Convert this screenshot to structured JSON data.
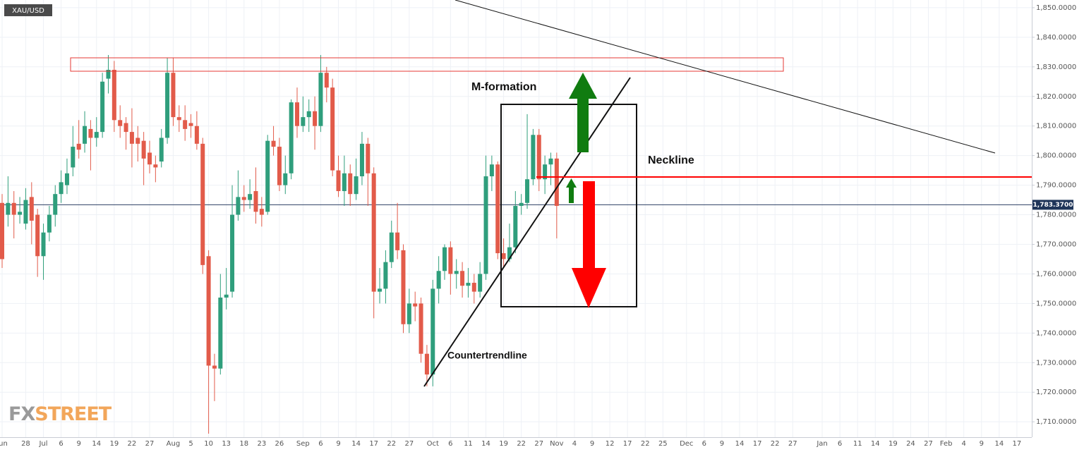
{
  "chart_data": {
    "type": "candlestick",
    "title": "XAU/USD",
    "watermark": {
      "brand": "FX",
      "suffix": "STREET"
    },
    "annotations": [
      "M-formation",
      "Neckline",
      "Countertrendline"
    ],
    "up_color": "#2f9e7c",
    "down_color": "#e25b4a",
    "grid": true,
    "price_line": {
      "value": 1783.37,
      "label": "1,783.3700"
    },
    "ylim": [
      1704.8,
      1852.6
    ],
    "yticks": [
      {
        "value": 1710,
        "label": "1,710.0000"
      },
      {
        "value": 1720,
        "label": "1,720.0000"
      },
      {
        "value": 1730,
        "label": "1,730.0000"
      },
      {
        "value": 1740,
        "label": "1,740.0000"
      },
      {
        "value": 1750,
        "label": "1,750.0000"
      },
      {
        "value": 1760,
        "label": "1,760.0000"
      },
      {
        "value": 1770,
        "label": "1,770.0000"
      },
      {
        "value": 1780,
        "label": "1,780.0000"
      },
      {
        "value": 1790,
        "label": "1,790.0000"
      },
      {
        "value": 1800,
        "label": "1,800.0000"
      },
      {
        "value": 1810,
        "label": "1,810.0000"
      },
      {
        "value": 1820,
        "label": "1,820.0000"
      },
      {
        "value": 1830,
        "label": "1,830.0000"
      },
      {
        "value": 1840,
        "label": "1,840.0000"
      },
      {
        "value": 1850,
        "label": "1,850.0000"
      }
    ],
    "categories": [
      "Jun",
      null,
      null,
      null,
      "28",
      null,
      null,
      "Jul",
      null,
      null,
      "6",
      null,
      null,
      "9",
      null,
      null,
      "14",
      null,
      null,
      "19",
      null,
      null,
      "22",
      null,
      null,
      "27",
      null,
      null,
      null,
      "Aug",
      null,
      null,
      "5",
      null,
      null,
      "10",
      null,
      null,
      "13",
      null,
      null,
      "18",
      null,
      null,
      "23",
      null,
      null,
      "26",
      null,
      null,
      null,
      "Sep",
      null,
      null,
      "6",
      null,
      null,
      "9",
      null,
      null,
      "14",
      null,
      null,
      "17",
      null,
      null,
      "22",
      null,
      null,
      "27",
      null,
      null,
      null,
      "Oct",
      null,
      null,
      "6",
      null,
      null,
      "11",
      null,
      null,
      "14",
      null,
      null,
      "19",
      null,
      null,
      "22",
      null,
      null,
      "27",
      null,
      null,
      "Nov",
      null,
      null,
      "4",
      null,
      null,
      "9",
      null,
      null,
      "12",
      null,
      null,
      "17",
      null,
      null,
      "22",
      null,
      null,
      "25",
      null,
      null,
      null,
      "Dec",
      null,
      null,
      "6",
      null,
      null,
      "9",
      null,
      null,
      "14",
      null,
      null,
      "17",
      null,
      null,
      "22",
      null,
      null,
      "27",
      null,
      null,
      null,
      null,
      "Jan",
      null,
      null,
      "6",
      null,
      null,
      "11",
      null,
      null,
      "14",
      null,
      null,
      "19",
      null,
      null,
      "24",
      null,
      null,
      "27",
      null,
      null,
      "Feb",
      null,
      null,
      "4",
      null,
      null,
      "9",
      null,
      null,
      "14",
      null,
      null,
      "17",
      null
    ],
    "open": [
      1784,
      1780,
      1784,
      1780,
      1777,
      1786,
      1780,
      1766,
      1774,
      1780,
      1787,
      1790,
      1796,
      1804,
      1804,
      1809,
      1806,
      1808,
      1826,
      1829,
      1812,
      1811,
      1808,
      1806,
      1805,
      1801,
      1797,
      1798,
      1806,
      1828,
      1813,
      1812,
      1811,
      1810,
      1804,
      1766,
      1729,
      1728,
      1752,
      1754,
      1780,
      1786,
      1785,
      1788,
      1782,
      1781,
      1805,
      1803,
      1790,
      1794,
      1818,
      1810,
      1813,
      1815,
      1810,
      1828,
      1823,
      1795,
      1788,
      1794,
      1787,
      1793,
      1804,
      1794,
      1754,
      1755,
      1764,
      1774,
      1768,
      1743,
      1750,
      1750,
      1733,
      1726,
      1755,
      1761,
      1769,
      1760,
      1761,
      1756,
      1757,
      1754,
      1760,
      1793,
      1797,
      1767,
      1765,
      1769,
      1783,
      1784,
      1792,
      1807,
      1792,
      1797,
      1799,
      null,
      null,
      null,
      null,
      null,
      null,
      null,
      null,
      null,
      null,
      null,
      null,
      null,
      null,
      null,
      null,
      null,
      null,
      null,
      null,
      null,
      null,
      null,
      null,
      null,
      null,
      null,
      null,
      null,
      null,
      null,
      null,
      null,
      null,
      null,
      null,
      null,
      null,
      null,
      null,
      null,
      null,
      null,
      null,
      null,
      null,
      null,
      null,
      null,
      null,
      null,
      null,
      null,
      null,
      null,
      null,
      null,
      null,
      null,
      null,
      null,
      null,
      null,
      null,
      null,
      null,
      null,
      null,
      null,
      null,
      null,
      null,
      null,
      null,
      null,
      null,
      null,
      null,
      null
    ],
    "high": [
      1787,
      1793,
      1788,
      1786,
      1789,
      1791,
      1782,
      1777,
      1783,
      1790,
      1795,
      1799,
      1810,
      1812,
      1815,
      1812,
      1813,
      1828,
      1834,
      1832,
      1817,
      1813,
      1816,
      1810,
      1808,
      1805,
      1800,
      1809,
      1833,
      1833,
      1817,
      1817,
      1814,
      1815,
      1806,
      1768,
      1733,
      1760,
      1762,
      1790,
      1795,
      1790,
      1792,
      1796,
      1786,
      1807,
      1810,
      1806,
      1800,
      1819,
      1823,
      1820,
      1819,
      1820,
      1834,
      1830,
      1826,
      1800,
      1800,
      1797,
      1799,
      1808,
      1806,
      1796,
      1762,
      1768,
      1778,
      1784,
      1770,
      1755,
      1754,
      1752,
      1736,
      1758,
      1766,
      1770,
      1771,
      1765,
      1764,
      1762,
      1760,
      1764,
      1800,
      1800,
      1798,
      1772,
      1777,
      1788,
      1787,
      1814,
      1809,
      1809,
      1800,
      1801,
      1801,
      null,
      null,
      null,
      null,
      null,
      null,
      null,
      null,
      null,
      null,
      null,
      null,
      null,
      null,
      null,
      null,
      null,
      null,
      null,
      null,
      null,
      null,
      null,
      null,
      null,
      null,
      null,
      null,
      null,
      null,
      null,
      null,
      null,
      null,
      null,
      null,
      null,
      null,
      null,
      null,
      null,
      null,
      null,
      null,
      null,
      null,
      null,
      null,
      null,
      null,
      null,
      null,
      null,
      null,
      null,
      null,
      null,
      null,
      null,
      null,
      null,
      null,
      null,
      null,
      null,
      null,
      null,
      null,
      null,
      null,
      null,
      null,
      null,
      null,
      null,
      null,
      null,
      null,
      null
    ],
    "low": [
      1762,
      1776,
      1772,
      1777,
      1775,
      1770,
      1759,
      1758,
      1771,
      1776,
      1784,
      1787,
      1793,
      1799,
      1801,
      1795,
      1803,
      1806,
      1821,
      1808,
      1806,
      1802,
      1796,
      1798,
      1790,
      1794,
      1791,
      1796,
      1804,
      1810,
      1808,
      1805,
      1806,
      1802,
      1760,
      1706,
      1717,
      1726,
      1748,
      1752,
      1778,
      1781,
      1782,
      1777,
      1776,
      1780,
      1800,
      1788,
      1787,
      1792,
      1806,
      1808,
      1808,
      1802,
      1808,
      1818,
      1793,
      1786,
      1783,
      1783,
      1785,
      1790,
      1783,
      1745,
      1750,
      1750,
      1762,
      1765,
      1740,
      1740,
      1744,
      1730,
      1722,
      1722,
      1750,
      1758,
      1753,
      1755,
      1752,
      1752,
      1750,
      1752,
      1758,
      1788,
      1765,
      1762,
      1764,
      1767,
      1780,
      1782,
      1790,
      1788,
      1787,
      1790,
      1772,
      null,
      null,
      null,
      null,
      null,
      null,
      null,
      null,
      null,
      null,
      null,
      null,
      null,
      null,
      null,
      null,
      null,
      null,
      null,
      null,
      null,
      null,
      null,
      null,
      null,
      null,
      null,
      null,
      null,
      null,
      null,
      null,
      null,
      null,
      null,
      null,
      null,
      null,
      null,
      null,
      null,
      null,
      null,
      null,
      null,
      null,
      null,
      null,
      null,
      null,
      null,
      null,
      null,
      null,
      null,
      null,
      null,
      null,
      null,
      null,
      null,
      null,
      null,
      null,
      null,
      null,
      null,
      null,
      null,
      null,
      null,
      null,
      null,
      null,
      null,
      null,
      null,
      null,
      null
    ],
    "close": [
      1765,
      1784,
      1780,
      1781,
      1785,
      1778,
      1766,
      1774,
      1780,
      1787,
      1791,
      1794,
      1803,
      1802,
      1810,
      1806,
      1808,
      1825,
      1829,
      1812,
      1810,
      1808,
      1804,
      1804,
      1799,
      1797,
      1796,
      1806,
      1828,
      1813,
      1812,
      1809,
      1810,
      1804,
      1763,
      1729,
      1728,
      1752,
      1753,
      1780,
      1786,
      1785,
      1787,
      1781,
      1780,
      1805,
      1803,
      1790,
      1794,
      1818,
      1810,
      1813,
      1815,
      1810,
      1828,
      1823,
      1795,
      1788,
      1794,
      1787,
      1793,
      1804,
      1794,
      1754,
      1755,
      1764,
      1774,
      1768,
      1743,
      1750,
      1749,
      1733,
      1726,
      1755,
      1761,
      1769,
      1760,
      1761,
      1756,
      1757,
      1754,
      1760,
      1793,
      1797,
      1767,
      1765,
      1769,
      1783,
      1784,
      1792,
      1807,
      1792,
      1797,
      1799,
      1783,
      null,
      null,
      null,
      null,
      null,
      null,
      null,
      null,
      null,
      null,
      null,
      null,
      null,
      null,
      null,
      null,
      null,
      null,
      null,
      null,
      null,
      null,
      null,
      null,
      null,
      null,
      null,
      null,
      null,
      null,
      null,
      null,
      null,
      null,
      null,
      null,
      null,
      null,
      null,
      null,
      null,
      null,
      null,
      null,
      null,
      null,
      null,
      null,
      null,
      null,
      null,
      null,
      null,
      null,
      null,
      null,
      null,
      null,
      null,
      null,
      null,
      null,
      null,
      null,
      null,
      null,
      null,
      null,
      null,
      null,
      null,
      null,
      null,
      null,
      null,
      null,
      null,
      null,
      null
    ]
  }
}
